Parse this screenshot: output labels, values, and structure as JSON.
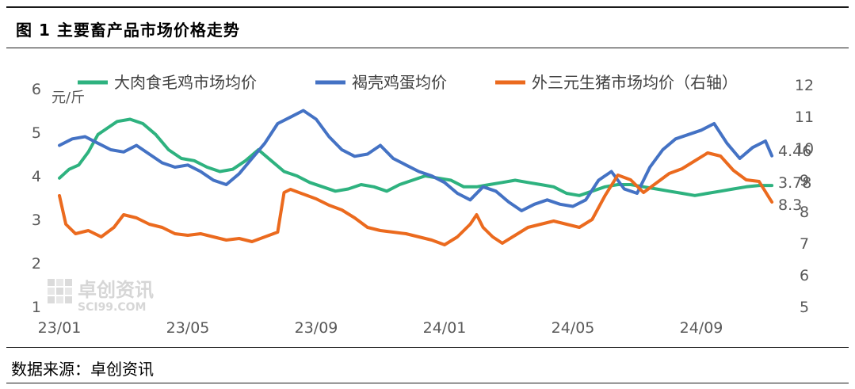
{
  "figure_title": "图  1 主要畜产品市场价格走势",
  "source": "数据来源：卓创资讯",
  "watermark": {
    "brand": "卓创资讯",
    "site": "SCI99.COM"
  },
  "chart_data": {
    "type": "line",
    "left_unit": "元/斤",
    "left_axis": {
      "ylim": [
        1,
        6
      ],
      "ticks": [
        "1",
        "2",
        "3",
        "4",
        "5",
        "6"
      ]
    },
    "right_axis": {
      "ylim": [
        5,
        12
      ],
      "ticks": [
        "5",
        "6",
        "7",
        "8",
        "9",
        "10",
        "11",
        "12"
      ]
    },
    "x_ticks": [
      "23/01",
      "23/05",
      "23/09",
      "24/01",
      "24/05",
      "24/09"
    ],
    "x_range": [
      "2023-01",
      "2024-12"
    ],
    "legend_position": "top",
    "series": [
      {
        "name": "大肉食毛鸡市场均价",
        "axis": "left",
        "color": "#2EB27F",
        "end_label": "3.78",
        "x": [
          0,
          0.3,
          0.6,
          0.9,
          1.2,
          1.5,
          1.8,
          2.2,
          2.6,
          3.0,
          3.4,
          3.8,
          4.2,
          4.6,
          5.0,
          5.4,
          5.8,
          6.2,
          6.6,
          7.0,
          7.4,
          7.8,
          8.2,
          8.6,
          9.0,
          9.4,
          9.8,
          10.2,
          10.6,
          11.0,
          11.4,
          11.8,
          12.2,
          12.6,
          13.0,
          13.4,
          13.8,
          14.2,
          14.6,
          15.0,
          15.4,
          15.8,
          16.2,
          16.6,
          17.0,
          17.4,
          17.8,
          18.2,
          18.6,
          19.0,
          19.4,
          19.8,
          20.2,
          20.6,
          21.0,
          21.4,
          21.8,
          22.2
        ],
        "y": [
          3.95,
          4.15,
          4.25,
          4.55,
          4.95,
          5.1,
          5.25,
          5.3,
          5.2,
          4.95,
          4.6,
          4.4,
          4.35,
          4.2,
          4.1,
          4.15,
          4.35,
          4.6,
          4.35,
          4.1,
          4.0,
          3.85,
          3.75,
          3.65,
          3.7,
          3.8,
          3.75,
          3.65,
          3.8,
          3.9,
          4.0,
          3.95,
          3.9,
          3.75,
          3.75,
          3.8,
          3.85,
          3.9,
          3.85,
          3.8,
          3.75,
          3.6,
          3.55,
          3.65,
          3.75,
          3.8,
          3.8,
          3.75,
          3.7,
          3.65,
          3.6,
          3.55,
          3.6,
          3.65,
          3.7,
          3.75,
          3.78,
          3.78
        ]
      },
      {
        "name": "褐壳鸡蛋均价",
        "axis": "left",
        "color": "#4472C4",
        "end_label": "4.46",
        "x": [
          0,
          0.4,
          0.8,
          1.2,
          1.6,
          2.0,
          2.4,
          2.8,
          3.2,
          3.6,
          4.0,
          4.4,
          4.8,
          5.2,
          5.6,
          6.0,
          6.4,
          6.8,
          7.2,
          7.6,
          8.0,
          8.4,
          8.8,
          9.2,
          9.6,
          10.0,
          10.4,
          10.8,
          11.2,
          11.6,
          12.0,
          12.4,
          12.8,
          13.2,
          13.6,
          14.0,
          14.4,
          14.8,
          15.2,
          15.6,
          16.0,
          16.4,
          16.8,
          17.2,
          17.6,
          18.0,
          18.4,
          18.8,
          19.2,
          19.6,
          20.0,
          20.4,
          20.8,
          21.2,
          21.6,
          22.0,
          22.2
        ],
        "y": [
          4.7,
          4.85,
          4.9,
          4.75,
          4.6,
          4.55,
          4.7,
          4.5,
          4.3,
          4.2,
          4.25,
          4.1,
          3.9,
          3.8,
          4.05,
          4.4,
          4.75,
          5.2,
          5.35,
          5.5,
          5.3,
          4.9,
          4.6,
          4.45,
          4.5,
          4.7,
          4.4,
          4.25,
          4.1,
          4.0,
          3.85,
          3.6,
          3.45,
          3.75,
          3.65,
          3.4,
          3.2,
          3.35,
          3.45,
          3.35,
          3.3,
          3.45,
          3.9,
          4.1,
          3.7,
          3.6,
          4.2,
          4.6,
          4.85,
          4.95,
          5.05,
          5.2,
          4.75,
          4.4,
          4.65,
          4.8,
          4.46
        ]
      },
      {
        "name": "外三元生猪市场均价（右轴）",
        "axis": "right",
        "color": "#EB6A1E",
        "end_label": "8.3",
        "x": [
          0,
          0.2,
          0.5,
          0.9,
          1.3,
          1.7,
          2.0,
          2.4,
          2.8,
          3.2,
          3.6,
          4.0,
          4.4,
          4.8,
          5.2,
          5.6,
          6.0,
          6.4,
          6.8,
          7.0,
          7.2,
          7.6,
          8.0,
          8.4,
          8.8,
          9.2,
          9.6,
          10.0,
          10.4,
          10.8,
          11.2,
          11.6,
          12.0,
          12.4,
          12.8,
          13.0,
          13.2,
          13.5,
          13.8,
          14.2,
          14.6,
          15.0,
          15.4,
          15.8,
          16.2,
          16.6,
          17.0,
          17.4,
          17.8,
          18.2,
          18.6,
          19.0,
          19.4,
          19.8,
          20.2,
          20.6,
          21.0,
          21.4,
          21.8,
          22.2
        ],
        "y": [
          8.5,
          7.6,
          7.3,
          7.4,
          7.2,
          7.5,
          7.9,
          7.8,
          7.6,
          7.5,
          7.3,
          7.25,
          7.3,
          7.2,
          7.1,
          7.15,
          7.05,
          7.2,
          7.35,
          8.6,
          8.7,
          8.55,
          8.4,
          8.2,
          8.05,
          7.8,
          7.5,
          7.4,
          7.35,
          7.3,
          7.2,
          7.1,
          6.95,
          7.2,
          7.6,
          7.9,
          7.5,
          7.2,
          7.0,
          7.25,
          7.5,
          7.6,
          7.7,
          7.6,
          7.5,
          7.75,
          8.5,
          9.15,
          9.0,
          8.6,
          8.9,
          9.2,
          9.35,
          9.6,
          9.85,
          9.75,
          9.3,
          9.0,
          8.95,
          8.3
        ]
      }
    ]
  }
}
